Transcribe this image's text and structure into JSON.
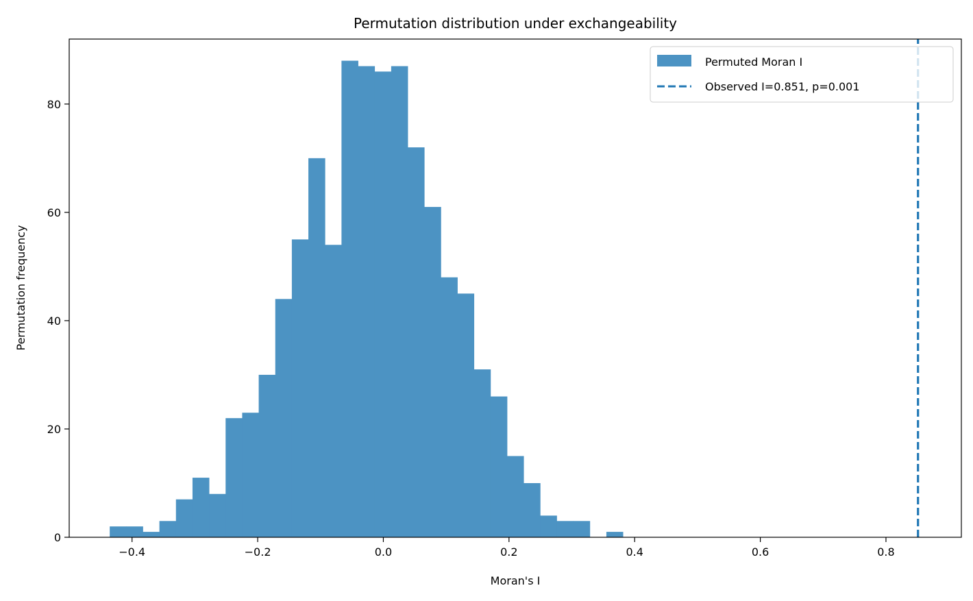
{
  "chart_data": {
    "type": "bar",
    "title": "Permutation distribution under exchangeability",
    "xlabel": "Moran's I",
    "ylabel": "Permutation frequency",
    "xlim": [
      -0.5,
      0.92
    ],
    "ylim": [
      0,
      92
    ],
    "xticks": [
      -0.4,
      -0.2,
      0.0,
      0.2,
      0.4,
      0.6,
      0.8
    ],
    "xtick_labels": [
      "−0.4",
      "−0.2",
      "0.0",
      "0.2",
      "0.4",
      "0.6",
      "0.8"
    ],
    "yticks": [
      0,
      20,
      40,
      60,
      80
    ],
    "ytick_labels": [
      "0",
      "20",
      "40",
      "60",
      "80"
    ],
    "grid": false,
    "legend_position": "top-right",
    "bar_color": "#4c93c3",
    "histogram": {
      "name": "Permuted Moran I",
      "bin_start": -0.4355,
      "bin_width": 0.02635,
      "counts": [
        2,
        2,
        1,
        3,
        7,
        11,
        8,
        22,
        23,
        30,
        44,
        55,
        70,
        54,
        88,
        87,
        86,
        87,
        72,
        61,
        48,
        45,
        31,
        26,
        15,
        10,
        4,
        3,
        3,
        0,
        1
      ]
    },
    "observed": {
      "name": "Observed I=0.851, p=0.001",
      "value": 0.851,
      "p_value": 0.001,
      "color": "#1f77b4",
      "style": "dashed"
    }
  }
}
